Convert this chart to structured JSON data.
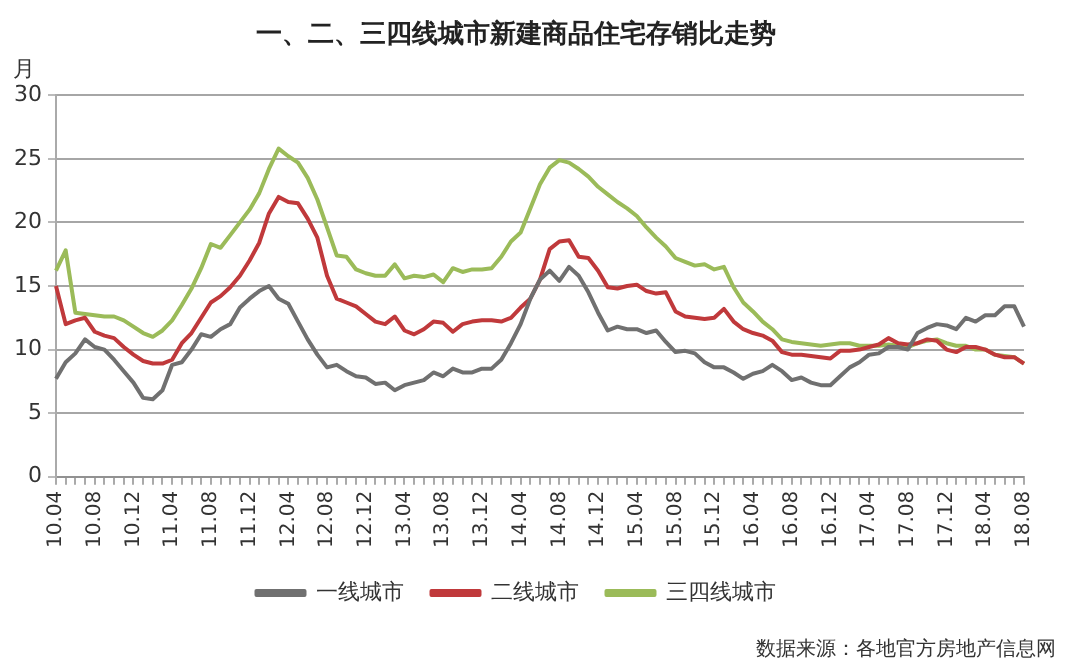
{
  "chart_data": {
    "type": "line",
    "title": "一、二、三四线城市新建商品住宅存销比走势",
    "ylabel": "月",
    "annotations": [
      "数据来源：各地官方房地产信息网"
    ],
    "categories": [
      "10.04",
      null,
      null,
      null,
      "10.08",
      null,
      null,
      null,
      "10.12",
      null,
      null,
      null,
      "11.04",
      null,
      null,
      null,
      "11.08",
      null,
      null,
      null,
      "11.12",
      null,
      null,
      null,
      "12.04",
      null,
      null,
      null,
      "12.08",
      null,
      null,
      null,
      "12.12",
      null,
      null,
      null,
      "13.04",
      null,
      null,
      null,
      "13.08",
      null,
      null,
      null,
      "13.12",
      null,
      null,
      null,
      "14.04",
      null,
      null,
      null,
      "14.08",
      null,
      null,
      null,
      "14.12",
      null,
      null,
      null,
      "15.04",
      null,
      null,
      null,
      "15.08",
      null,
      null,
      null,
      "15.12",
      null,
      null,
      null,
      "16.04",
      null,
      null,
      null,
      "16.08",
      null,
      null,
      null,
      "16.12",
      null,
      null,
      null,
      "17.04",
      null,
      null,
      null,
      "17.08",
      null,
      null,
      null,
      "17.12",
      null,
      null,
      null,
      "18.04",
      null,
      null,
      null,
      "18.08"
    ],
    "series": [
      {
        "name": "一线城市",
        "color": "#707070",
        "values": [
          7.7,
          9.0,
          9.7,
          10.8,
          10.2,
          10.0,
          9.2,
          8.3,
          7.4,
          6.2,
          6.1,
          6.8,
          8.8,
          9.0,
          10.0,
          11.2,
          11.0,
          11.6,
          12.0,
          13.3,
          14.0,
          14.6,
          15.0,
          14.0,
          13.6,
          12.2,
          10.8,
          9.6,
          8.6,
          8.8,
          8.3,
          7.9,
          7.8,
          7.3,
          7.4,
          6.8,
          7.2,
          7.4,
          7.6,
          8.2,
          7.9,
          8.5,
          8.2,
          8.2,
          8.5,
          8.5,
          9.2,
          10.5,
          12.0,
          14.0,
          15.5,
          16.2,
          15.4,
          16.5,
          15.8,
          14.5,
          12.9,
          11.5,
          11.8,
          11.6,
          11.6,
          11.3,
          11.5,
          10.6,
          9.8,
          9.9,
          9.7,
          9.0,
          8.6,
          8.6,
          8.2,
          7.7,
          8.1,
          8.3,
          8.8,
          8.3,
          7.6,
          7.8,
          7.4,
          7.2,
          7.2,
          7.9,
          8.6,
          9.0,
          9.6,
          9.7,
          10.2,
          10.2,
          10.0,
          11.3,
          11.7,
          12.0,
          11.9,
          11.6,
          12.5,
          12.2,
          12.7,
          12.7,
          13.4,
          13.4,
          11.8
        ]
      },
      {
        "name": "二线城市",
        "color": "#c0393b",
        "values": [
          15.0,
          12.0,
          12.3,
          12.5,
          11.4,
          11.1,
          10.9,
          10.2,
          9.6,
          9.1,
          8.9,
          8.9,
          9.2,
          10.5,
          11.3,
          12.5,
          13.7,
          14.2,
          14.9,
          15.8,
          17.0,
          18.4,
          20.7,
          22.0,
          21.6,
          21.5,
          20.3,
          18.8,
          15.8,
          14.0,
          13.7,
          13.4,
          12.8,
          12.2,
          12.0,
          12.6,
          11.5,
          11.2,
          11.6,
          12.2,
          12.1,
          11.4,
          12.0,
          12.2,
          12.3,
          12.3,
          12.2,
          12.5,
          13.3,
          14.0,
          15.5,
          17.9,
          18.5,
          18.6,
          17.3,
          17.2,
          16.2,
          14.9,
          14.8,
          15.0,
          15.1,
          14.6,
          14.4,
          14.5,
          13.0,
          12.6,
          12.5,
          12.4,
          12.5,
          13.2,
          12.2,
          11.6,
          11.3,
          11.1,
          10.7,
          9.8,
          9.6,
          9.6,
          9.5,
          9.4,
          9.3,
          9.9,
          9.9,
          10.0,
          10.2,
          10.4,
          10.9,
          10.5,
          10.4,
          10.5,
          10.8,
          10.7,
          10.0,
          9.8,
          10.2,
          10.2,
          10.0,
          9.6,
          9.4,
          9.4,
          8.9
        ]
      },
      {
        "name": "三四线城市",
        "color": "#9bbb59",
        "values": [
          16.2,
          17.8,
          12.9,
          12.8,
          12.7,
          12.6,
          12.6,
          12.3,
          11.8,
          11.3,
          11.0,
          11.5,
          12.3,
          13.5,
          14.8,
          16.4,
          18.3,
          18.0,
          19.0,
          20.0,
          21.0,
          22.3,
          24.2,
          25.8,
          25.2,
          24.7,
          23.5,
          21.8,
          19.6,
          17.4,
          17.3,
          16.3,
          16.0,
          15.8,
          15.8,
          16.7,
          15.6,
          15.8,
          15.7,
          15.9,
          15.3,
          16.4,
          16.1,
          16.3,
          16.3,
          16.4,
          17.3,
          18.5,
          19.2,
          21.1,
          23.0,
          24.3,
          24.9,
          24.7,
          24.2,
          23.6,
          22.8,
          22.2,
          21.6,
          21.1,
          20.5,
          19.6,
          18.8,
          18.1,
          17.2,
          16.9,
          16.6,
          16.7,
          16.3,
          16.5,
          14.9,
          13.7,
          13.0,
          12.2,
          11.6,
          10.8,
          10.6,
          10.5,
          10.4,
          10.3,
          10.4,
          10.5,
          10.5,
          10.3,
          10.3,
          10.3,
          10.4,
          10.3,
          10.2,
          10.5,
          10.7,
          10.8,
          10.5,
          10.3,
          10.3,
          10.0,
          10.0,
          9.6,
          9.5,
          9.4,
          8.9
        ]
      }
    ],
    "ylim": [
      0,
      30
    ],
    "yticks": [
      0,
      5,
      10,
      15,
      20,
      25,
      30
    ],
    "grid": "y",
    "legend": "bottom",
    "marker": "none",
    "line_style": "solid"
  }
}
